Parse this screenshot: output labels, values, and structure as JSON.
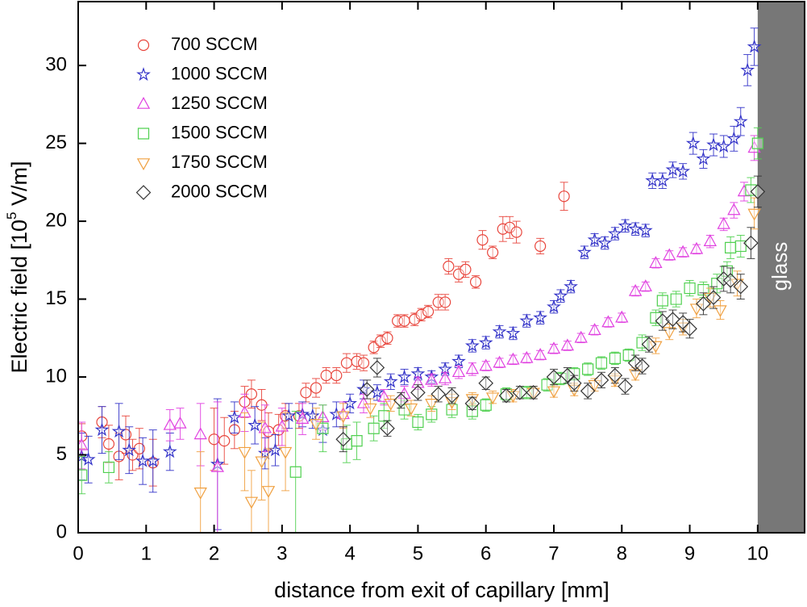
{
  "chart_data": {
    "type": "scatter",
    "xlabel": "distance from exit of capillary [mm]",
    "ylabel_parts": [
      "Electric field [10",
      "5",
      " V/m]"
    ],
    "xlim": [
      0,
      10.69
    ],
    "ylim": [
      0,
      34.1
    ],
    "xticks": [
      0,
      1,
      2,
      3,
      4,
      5,
      6,
      7,
      8,
      9,
      10
    ],
    "yticks": [
      0,
      5,
      10,
      15,
      20,
      25,
      30
    ],
    "legend": "upper left",
    "shaded_region": {
      "xlim": [
        10,
        10.69
      ],
      "label": "glass",
      "color": "#777777"
    },
    "series": [
      {
        "name": "700 SCCM",
        "color": "#e8453c",
        "marker": "circle",
        "x": [
          0.05,
          0.35,
          0.45,
          0.6,
          0.7,
          0.8,
          0.9,
          1.1,
          2.0,
          2.15,
          2.3,
          2.45,
          2.55,
          2.7,
          2.8,
          2.95,
          3.05,
          3.25,
          3.35,
          3.5,
          3.65,
          3.8,
          3.95,
          4.1,
          4.2,
          4.35,
          4.45,
          4.55,
          4.7,
          4.8,
          4.95,
          5.05,
          5.15,
          5.3,
          5.4,
          5.45,
          5.6,
          5.7,
          5.85,
          5.95,
          6.1,
          6.25,
          6.35,
          6.45,
          6.8,
          7.15
        ],
        "values": [
          6.2,
          7.1,
          5.7,
          4.9,
          6.3,
          5.0,
          5.4,
          4.5,
          6.0,
          5.9,
          6.6,
          8.4,
          8.9,
          8.2,
          6.5,
          6.6,
          7.5,
          7.5,
          9.0,
          9.3,
          10.1,
          10.1,
          10.9,
          11.0,
          10.9,
          11.9,
          12.3,
          12.5,
          13.6,
          13.6,
          13.7,
          14.0,
          14.2,
          14.8,
          14.8,
          17.1,
          16.6,
          16.9,
          16.1,
          18.8,
          18.0,
          19.5,
          19.6,
          19.3,
          18.4,
          21.6
        ],
        "errors": [
          0.8,
          1.0,
          1.2,
          1.5,
          1.2,
          1.0,
          1.3,
          1.5,
          2.0,
          1.5,
          1.2,
          1.0,
          0.9,
          1.0,
          1.2,
          1.0,
          0.8,
          0.8,
          0.6,
          0.6,
          0.5,
          0.5,
          0.6,
          0.5,
          0.5,
          0.4,
          0.4,
          0.4,
          0.4,
          0.4,
          0.4,
          0.4,
          0.4,
          0.5,
          0.5,
          0.5,
          0.5,
          0.5,
          0.4,
          0.6,
          0.4,
          0.8,
          0.7,
          0.7,
          0.5,
          0.9
        ]
      },
      {
        "name": "1000 SCCM",
        "color": "#3232c8",
        "marker": "star",
        "x": [
          0.05,
          0.15,
          0.35,
          0.6,
          0.75,
          0.95,
          1.1,
          1.35,
          2.05,
          2.3,
          2.6,
          2.75,
          2.9,
          3.1,
          3.3,
          3.45,
          3.6,
          3.8,
          4.0,
          4.2,
          4.4,
          4.6,
          4.8,
          5.0,
          5.2,
          5.4,
          5.6,
          5.8,
          6.0,
          6.2,
          6.4,
          6.6,
          6.8,
          7.0,
          7.1,
          7.25,
          7.45,
          7.6,
          7.75,
          7.9,
          8.05,
          8.2,
          8.35,
          8.45,
          8.6,
          8.75,
          8.9,
          9.05,
          9.2,
          9.35,
          9.5,
          9.65,
          9.75,
          9.85,
          9.95
        ],
        "values": [
          4.9,
          4.7,
          6.6,
          6.5,
          5.3,
          4.6,
          4.6,
          5.2,
          4.4,
          7.4,
          6.9,
          5.1,
          5.3,
          7.5,
          7.6,
          7.5,
          6.6,
          7.6,
          8.3,
          9.2,
          9.0,
          9.7,
          10.0,
          10.2,
          10.0,
          10.5,
          11.0,
          12.0,
          12.2,
          12.9,
          12.8,
          13.6,
          13.8,
          14.5,
          15.2,
          15.8,
          18.0,
          18.8,
          18.6,
          19.2,
          19.7,
          19.5,
          19.4,
          22.6,
          22.6,
          23.3,
          23.2,
          25.0,
          24.0,
          24.9,
          24.8,
          25.3,
          26.4,
          29.7,
          31.2
        ],
        "errors": [
          1.5,
          1.5,
          1.5,
          1.8,
          1.5,
          1.5,
          2.0,
          1.2,
          4.2,
          1.0,
          1.2,
          1.0,
          1.0,
          0.8,
          0.8,
          0.8,
          0.8,
          0.8,
          0.6,
          0.6,
          0.5,
          0.5,
          0.5,
          0.4,
          0.4,
          0.4,
          0.4,
          0.4,
          0.4,
          0.4,
          0.4,
          0.4,
          0.4,
          0.4,
          0.4,
          0.4,
          0.4,
          0.4,
          0.4,
          0.4,
          0.4,
          0.4,
          0.4,
          0.5,
          0.5,
          0.5,
          0.5,
          0.7,
          0.6,
          0.7,
          0.7,
          0.8,
          0.9,
          1.0,
          1.2
        ]
      },
      {
        "name": "1250 SCCM",
        "color": "#e040e0",
        "marker": "triangle-up",
        "x": [
          0.05,
          1.35,
          1.5,
          1.8,
          2.05,
          2.45,
          2.75,
          3.0,
          3.3,
          3.6,
          3.9,
          4.2,
          4.5,
          4.8,
          5.0,
          5.2,
          5.4,
          5.6,
          5.8,
          6.0,
          6.2,
          6.4,
          6.6,
          6.8,
          7.0,
          7.2,
          7.4,
          7.6,
          7.8,
          8.0,
          8.2,
          8.35,
          8.5,
          8.7,
          8.9,
          9.1,
          9.3,
          9.5,
          9.65,
          9.8,
          9.95
        ],
        "values": [
          5.6,
          6.9,
          7.0,
          6.3,
          4.2,
          7.7,
          6.7,
          6.8,
          7.3,
          7.4,
          7.6,
          8.3,
          8.7,
          8.9,
          9.6,
          9.8,
          9.9,
          10.3,
          10.5,
          10.7,
          10.9,
          11.1,
          11.2,
          11.4,
          11.8,
          12.0,
          12.5,
          13.0,
          13.5,
          13.8,
          15.5,
          15.8,
          17.3,
          17.8,
          18.0,
          18.2,
          18.7,
          19.8,
          20.7,
          21.9,
          24.7
        ],
        "errors": [
          1.5,
          1.0,
          1.0,
          2.0,
          4.2,
          1.2,
          1.5,
          1.2,
          1.0,
          0.8,
          0.8,
          0.6,
          0.5,
          0.5,
          0.4,
          0.4,
          0.4,
          0.4,
          0.4,
          0.3,
          0.3,
          0.3,
          0.3,
          0.3,
          0.3,
          0.3,
          0.3,
          0.3,
          0.3,
          0.3,
          0.3,
          0.3,
          0.3,
          0.3,
          0.3,
          0.3,
          0.4,
          0.4,
          0.5,
          0.6,
          0.8
        ]
      },
      {
        "name": "1500 SCCM",
        "color": "#50d050",
        "marker": "square",
        "x": [
          0.05,
          0.45,
          3.2,
          3.6,
          3.95,
          4.1,
          4.35,
          4.5,
          4.8,
          5.0,
          5.2,
          5.5,
          5.8,
          6.0,
          6.3,
          6.6,
          6.9,
          7.1,
          7.3,
          7.5,
          7.7,
          7.9,
          8.1,
          8.3,
          8.5,
          8.6,
          8.8,
          9.0,
          9.2,
          9.4,
          9.55,
          9.6,
          9.75,
          9.9,
          10.0
        ],
        "values": [
          3.7,
          4.2,
          3.9,
          6.7,
          5.7,
          5.9,
          6.7,
          7.5,
          7.9,
          7.1,
          7.6,
          7.9,
          7.8,
          8.2,
          8.9,
          9.0,
          9.5,
          9.9,
          10.2,
          10.5,
          10.9,
          11.2,
          11.4,
          12.2,
          13.8,
          14.9,
          15.0,
          15.7,
          15.6,
          16.0,
          16.8,
          18.3,
          18.4,
          22.0,
          25.0
        ],
        "errors": [
          1.2,
          1.0,
          3.9,
          1.5,
          1.2,
          1.2,
          0.8,
          0.8,
          0.6,
          0.5,
          0.5,
          0.5,
          0.5,
          0.4,
          0.4,
          0.4,
          0.4,
          0.4,
          0.4,
          0.4,
          0.4,
          0.4,
          0.4,
          0.5,
          0.5,
          0.5,
          0.5,
          0.5,
          0.5,
          0.6,
          0.6,
          0.7,
          0.7,
          0.8,
          1.0
        ]
      },
      {
        "name": "1750 SCCM",
        "color": "#f0a040",
        "marker": "triangle-down",
        "x": [
          1.8,
          2.45,
          2.55,
          2.7,
          2.8,
          3.05,
          3.5,
          3.9,
          4.3,
          4.6,
          4.9,
          5.2,
          5.5,
          5.8,
          6.1,
          6.4,
          6.7,
          7.0,
          7.3,
          7.6,
          7.9,
          8.2,
          8.5,
          8.7,
          8.9,
          9.1,
          9.3,
          9.45,
          9.7,
          9.95
        ],
        "values": [
          2.6,
          5.2,
          2.0,
          4.6,
          2.7,
          5.2,
          7.0,
          7.5,
          8.0,
          8.3,
          8.0,
          8.3,
          8.4,
          8.6,
          8.7,
          8.8,
          9.0,
          9.1,
          9.2,
          9.5,
          9.8,
          10.2,
          12.0,
          12.9,
          13.2,
          14.4,
          15.1,
          14.3,
          16.0,
          20.5
        ],
        "errors": [
          2.6,
          2.5,
          2.0,
          2.5,
          2.7,
          2.5,
          1.0,
          0.8,
          0.6,
          0.5,
          0.5,
          0.5,
          0.5,
          0.4,
          0.4,
          0.4,
          0.4,
          0.4,
          0.4,
          0.4,
          0.4,
          0.4,
          0.5,
          0.5,
          0.5,
          0.6,
          0.6,
          0.6,
          0.8,
          1.0
        ]
      },
      {
        "name": "2000 SCCM",
        "color": "#333333",
        "marker": "diamond",
        "x": [
          3.9,
          4.25,
          4.4,
          4.55,
          4.75,
          5.0,
          5.3,
          5.5,
          5.8,
          6.0,
          6.3,
          6.5,
          6.7,
          7.0,
          7.2,
          7.3,
          7.5,
          7.7,
          7.9,
          8.05,
          8.2,
          8.3,
          8.4,
          8.6,
          8.75,
          8.9,
          9.0,
          9.2,
          9.35,
          9.5,
          9.6,
          9.75,
          9.9,
          10.0
        ],
        "values": [
          6.0,
          9.2,
          10.6,
          6.7,
          8.5,
          9.0,
          8.9,
          8.8,
          8.3,
          9.6,
          8.8,
          9.0,
          9.0,
          10.0,
          10.1,
          9.6,
          9.1,
          9.8,
          10.1,
          9.4,
          10.9,
          10.7,
          12.1,
          13.6,
          13.7,
          13.5,
          13.1,
          14.7,
          15.1,
          16.3,
          16.2,
          15.8,
          18.6,
          21.9
        ],
        "errors": [
          0.8,
          0.6,
          0.6,
          0.5,
          0.5,
          0.5,
          0.5,
          0.5,
          0.4,
          0.4,
          0.4,
          0.4,
          0.4,
          0.5,
          0.5,
          0.5,
          0.5,
          0.5,
          0.5,
          0.5,
          0.5,
          0.5,
          0.5,
          0.6,
          0.6,
          0.6,
          0.6,
          0.7,
          0.7,
          0.8,
          0.8,
          0.8,
          1.0,
          1.0
        ]
      }
    ]
  }
}
